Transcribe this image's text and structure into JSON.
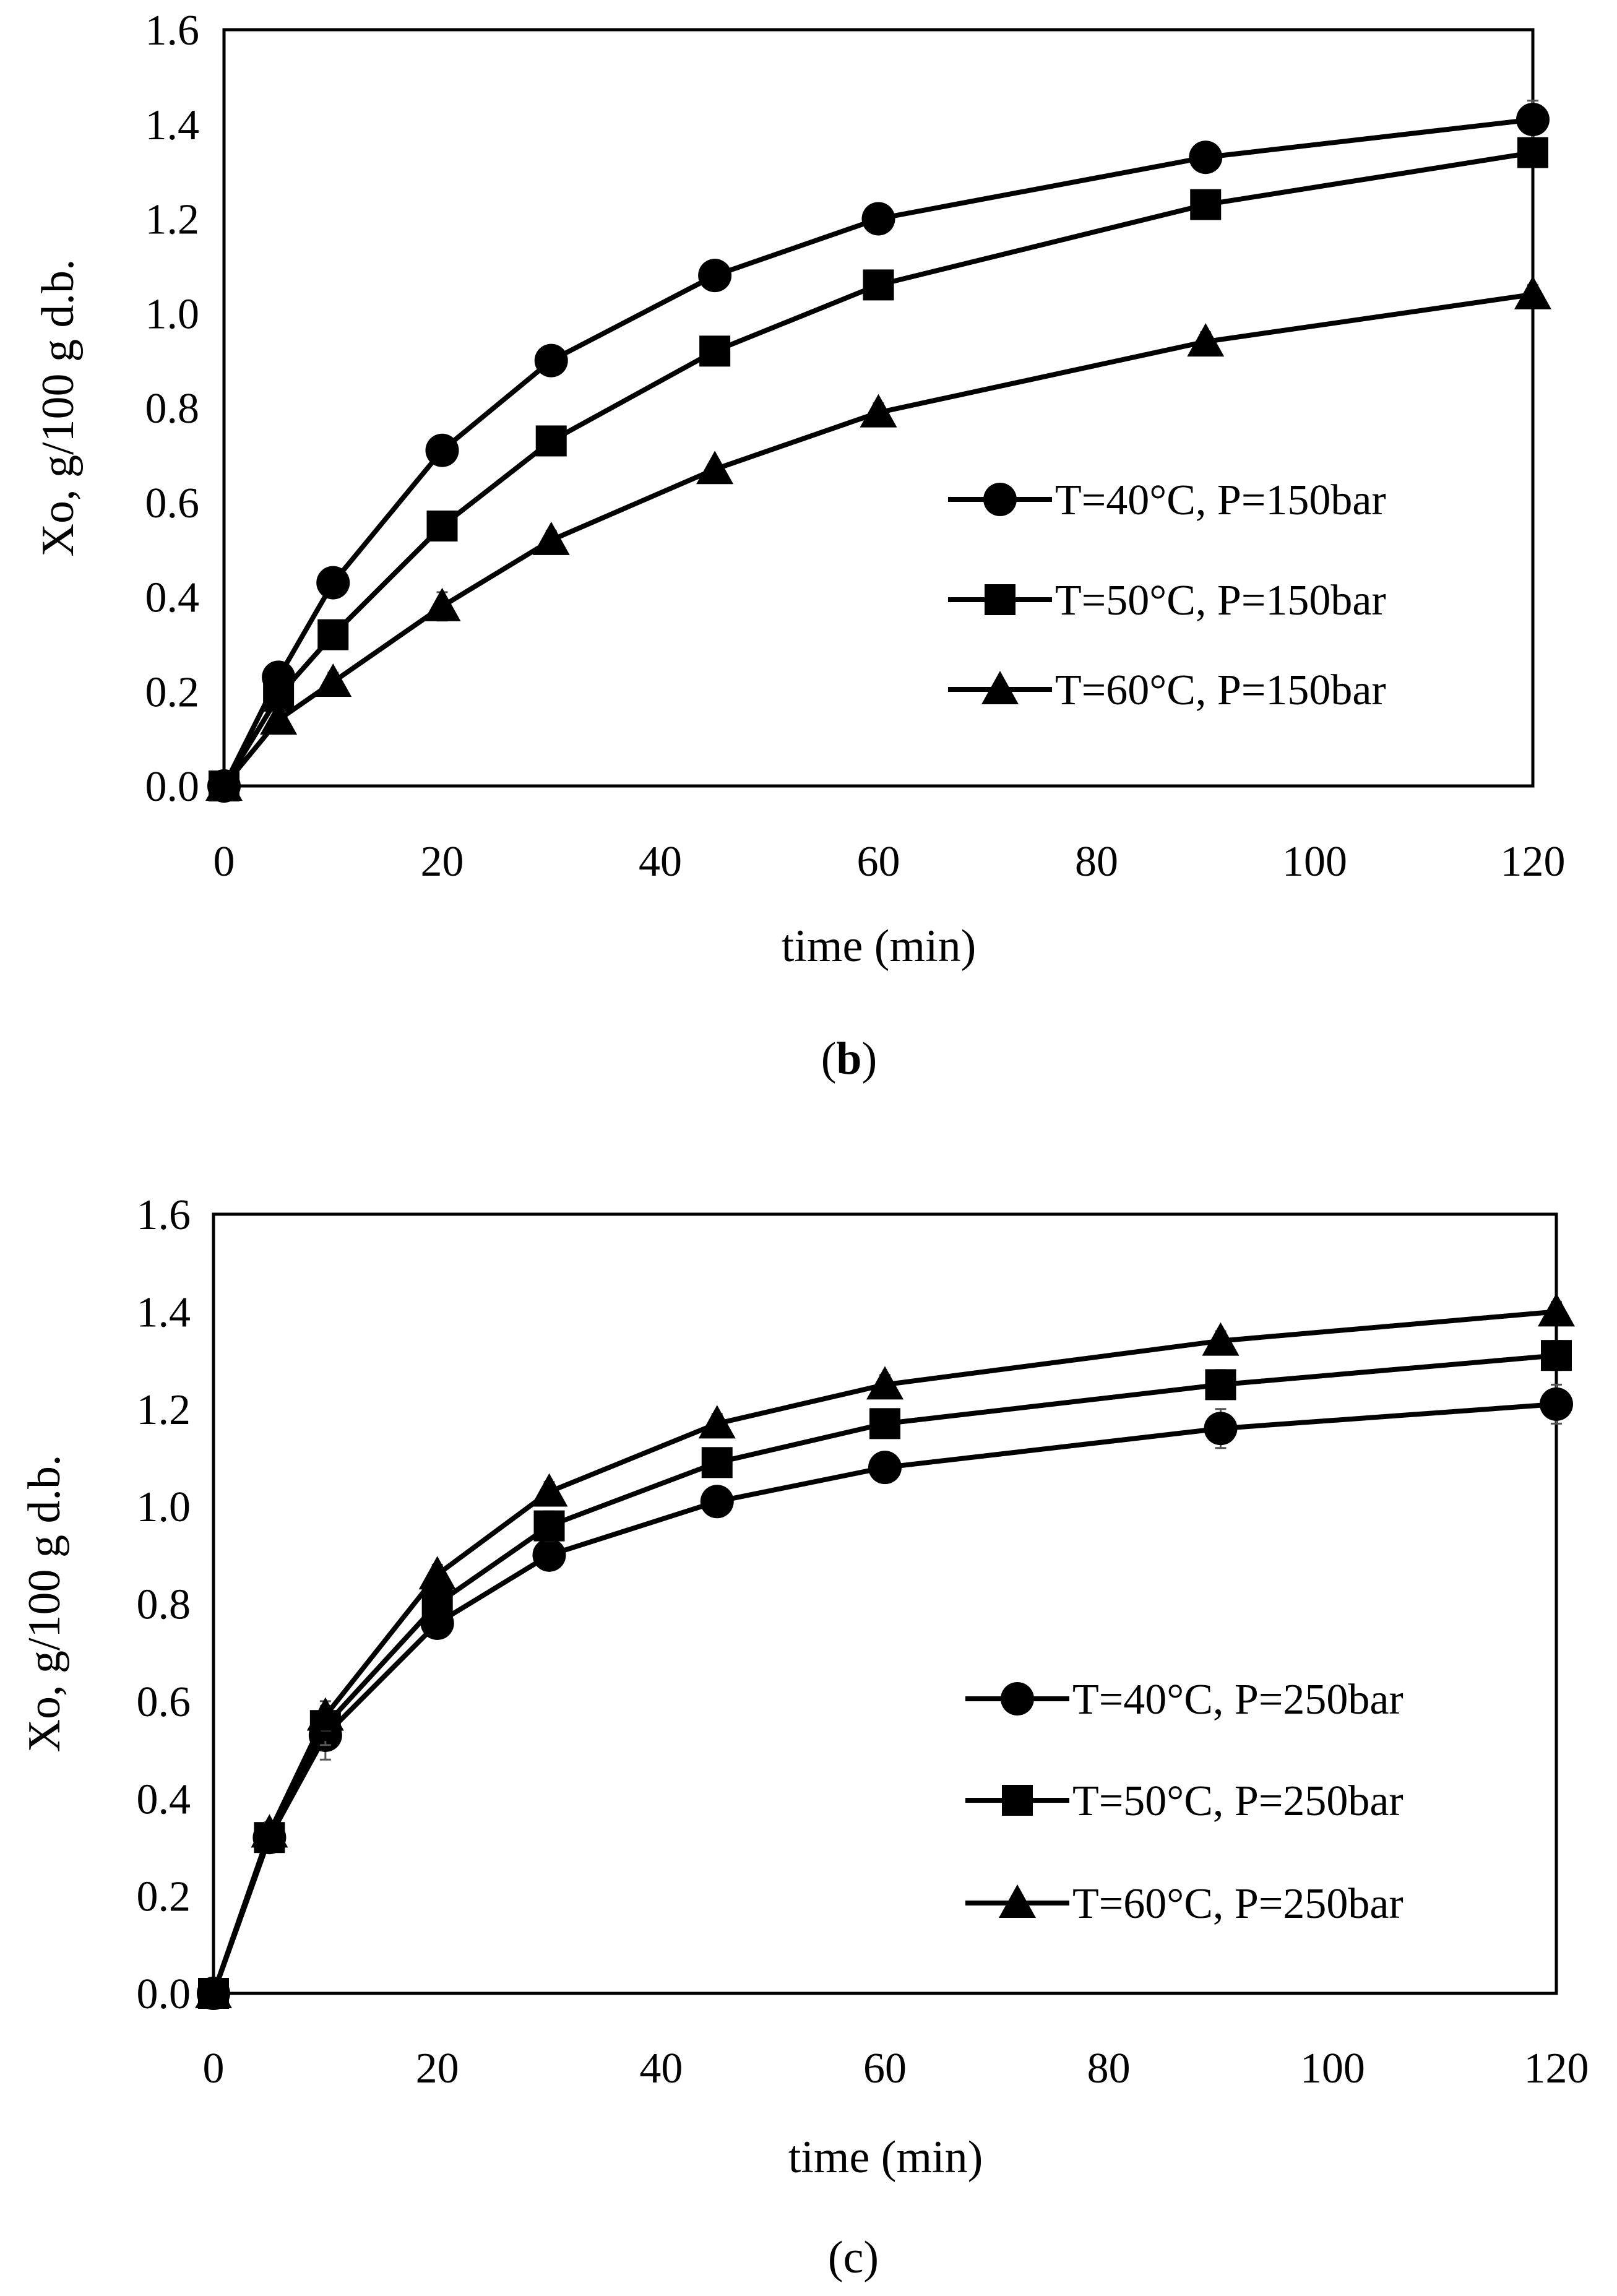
{
  "chart_data": [
    {
      "type": "line",
      "panel_label": "b",
      "xlabel": "time (min)",
      "ylabel": "Xo, g/100 g d.b.",
      "xlim": [
        0,
        120
      ],
      "ylim": [
        0,
        1.6
      ],
      "xticks": [
        "0",
        "20",
        "40",
        "60",
        "80",
        "100",
        "120"
      ],
      "yticks": [
        "0.0",
        "0.2",
        "0.4",
        "0.6",
        "0.8",
        "1.0",
        "1.2",
        "1.4",
        "1.6"
      ],
      "legend_position": "right",
      "x": [
        0,
        5,
        10,
        20,
        30,
        45,
        60,
        90,
        120
      ],
      "series": [
        {
          "name": "T=40°C, P=150bar",
          "marker": "circle",
          "values": [
            0,
            0.23,
            0.43,
            0.71,
            0.9,
            1.08,
            1.2,
            1.33,
            1.41
          ],
          "errors": [
            0,
            0.01,
            0.02,
            0.03,
            0.02,
            0.01,
            0.02,
            0.02,
            0.04
          ]
        },
        {
          "name": "T=50°C, P=150bar",
          "marker": "square",
          "values": [
            0,
            0.19,
            0.32,
            0.55,
            0.73,
            0.92,
            1.06,
            1.23,
            1.34
          ],
          "errors": [
            0,
            0.01,
            0.02,
            0.02,
            0.02,
            0.02,
            0.02,
            0.02,
            0.02
          ]
        },
        {
          "name": "T=60°C, P=150bar",
          "marker": "triangle",
          "values": [
            0,
            0.14,
            0.22,
            0.38,
            0.52,
            0.67,
            0.79,
            0.94,
            1.04
          ],
          "errors": [
            0,
            0.01,
            0.02,
            0.03,
            0.02,
            0.01,
            0.02,
            0.02,
            0.02
          ]
        }
      ]
    },
    {
      "type": "line",
      "panel_label": "c",
      "xlabel": "time (min)",
      "ylabel": "Xo, g/100 g d.b.",
      "xlim": [
        0,
        120
      ],
      "ylim": [
        0,
        1.6
      ],
      "xticks": [
        "0",
        "20",
        "40",
        "60",
        "80",
        "100",
        "120"
      ],
      "yticks": [
        "0.0",
        "0.2",
        "0.4",
        "0.6",
        "0.8",
        "1.0",
        "1.2",
        "1.4",
        "1.6"
      ],
      "legend_position": "right",
      "x": [
        0,
        5,
        10,
        20,
        30,
        45,
        60,
        90,
        120
      ],
      "series": [
        {
          "name": "T=40°C, P=250bar",
          "marker": "circle",
          "values": [
            0,
            0.32,
            0.53,
            0.76,
            0.9,
            1.01,
            1.08,
            1.16,
            1.21
          ],
          "errors": [
            0,
            0.02,
            0.05,
            0.02,
            0.02,
            0.01,
            0.03,
            0.04,
            0.04
          ]
        },
        {
          "name": "T=50°C, P=250bar",
          "marker": "square",
          "values": [
            0,
            0.32,
            0.55,
            0.8,
            0.96,
            1.09,
            1.17,
            1.25,
            1.31
          ],
          "errors": [
            0,
            0.02,
            0.04,
            0.02,
            0.03,
            0.02,
            0.02,
            0.03,
            0.03
          ]
        },
        {
          "name": "T=60°C, P=250bar",
          "marker": "triangle",
          "values": [
            0,
            0.33,
            0.57,
            0.86,
            1.03,
            1.17,
            1.25,
            1.34,
            1.4
          ],
          "errors": [
            0,
            0.02,
            0.03,
            0.02,
            0.02,
            0.02,
            0.02,
            0.02,
            0.02
          ]
        }
      ]
    }
  ]
}
